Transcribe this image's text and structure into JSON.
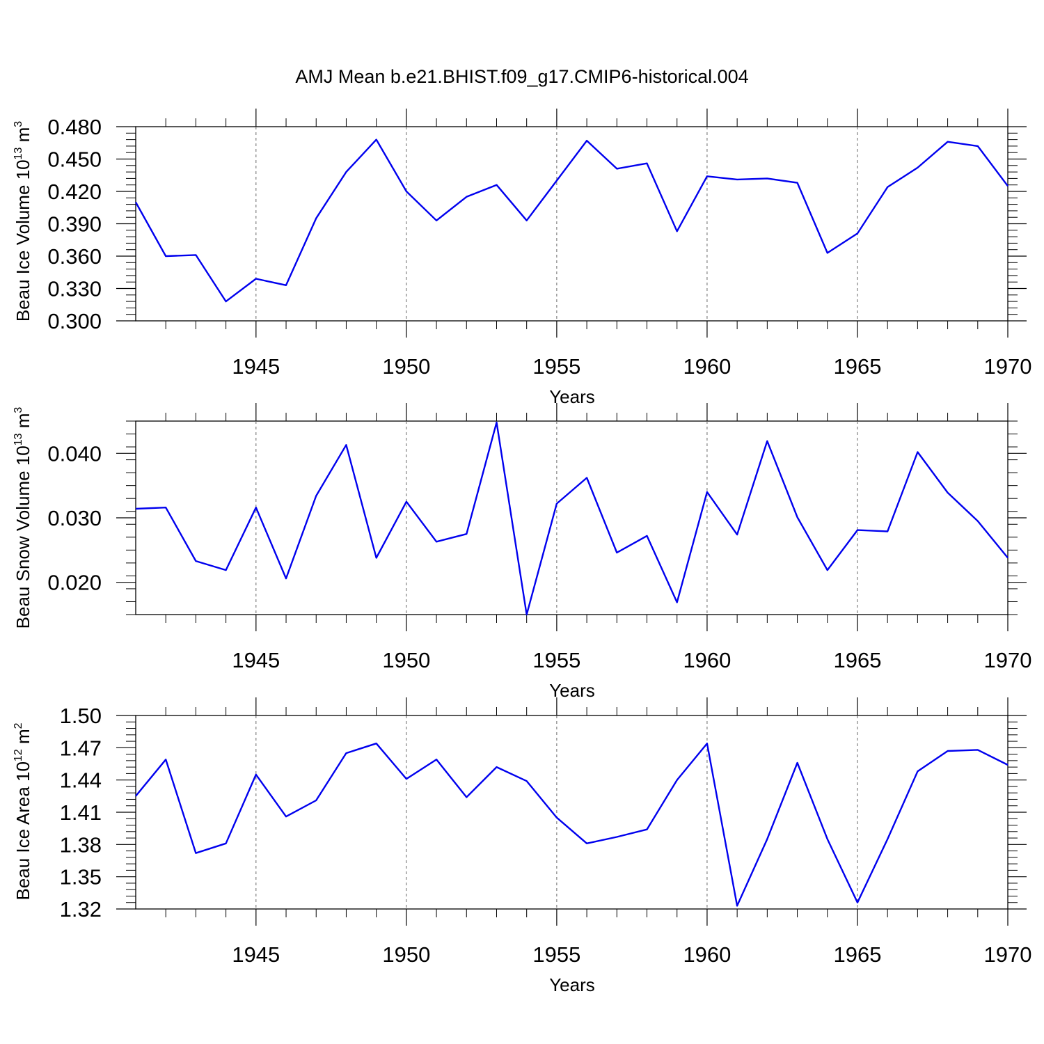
{
  "chart_data": {
    "type": "line",
    "title": "AMJ Mean b.e21.BHIST.f09_g17.CMIP6-historical.004",
    "line_color": "#0000ee",
    "x": [
      1941,
      1942,
      1943,
      1944,
      1945,
      1946,
      1947,
      1948,
      1949,
      1950,
      1951,
      1952,
      1953,
      1954,
      1955,
      1956,
      1957,
      1958,
      1959,
      1960,
      1961,
      1962,
      1963,
      1964,
      1965,
      1966,
      1967,
      1968,
      1969,
      1970
    ],
    "xlim": [
      1941,
      1970
    ],
    "xticks": [
      "1945",
      "1950",
      "1955",
      "1960",
      "1965",
      "1970"
    ],
    "xlabel": "Years",
    "panels": [
      {
        "ylabel": "Beau Ice Volume 10",
        "ylabel_exp": "13",
        "ylabel_unit": " m",
        "ylabel_unit_exp": "3",
        "ylim": [
          0.3,
          0.48
        ],
        "yticks": [
          "0.480",
          "0.450",
          "0.420",
          "0.390",
          "0.360",
          "0.330",
          "0.300"
        ],
        "values": [
          0.41,
          0.36,
          0.361,
          0.318,
          0.339,
          0.333,
          0.395,
          0.438,
          0.468,
          0.42,
          0.393,
          0.415,
          0.426,
          0.393,
          0.43,
          0.467,
          0.441,
          0.446,
          0.383,
          0.434,
          0.431,
          0.432,
          0.428,
          0.363,
          0.381,
          0.424,
          0.442,
          0.466,
          0.462,
          0.425
        ]
      },
      {
        "ylabel": "Beau Snow Volume 10",
        "ylabel_exp": "13",
        "ylabel_unit": " m",
        "ylabel_unit_exp": "3",
        "ylim": [
          0.015,
          0.045
        ],
        "yticks": [
          "0.040",
          "0.030",
          "0.020"
        ],
        "values": [
          0.0314,
          0.0316,
          0.0233,
          0.0219,
          0.0316,
          0.0206,
          0.0334,
          0.0413,
          0.0238,
          0.0325,
          0.0263,
          0.0275,
          0.0448,
          0.015,
          0.0322,
          0.0362,
          0.0246,
          0.0272,
          0.0169,
          0.034,
          0.0274,
          0.0419,
          0.0301,
          0.0219,
          0.0281,
          0.0279,
          0.0402,
          0.0339,
          0.0295,
          0.0238
        ]
      },
      {
        "ylabel": "Beau Ice Area 10",
        "ylabel_exp": "12",
        "ylabel_unit": " m",
        "ylabel_unit_exp": "2",
        "ylim": [
          1.32,
          1.5
        ],
        "yticks": [
          "1.50",
          "1.47",
          "1.44",
          "1.41",
          "1.38",
          "1.35",
          "1.32"
        ],
        "values": [
          1.425,
          1.459,
          1.372,
          1.381,
          1.445,
          1.406,
          1.421,
          1.465,
          1.474,
          1.441,
          1.459,
          1.424,
          1.452,
          1.439,
          1.405,
          1.381,
          1.387,
          1.394,
          1.44,
          1.474,
          1.323,
          1.385,
          1.456,
          1.385,
          1.326,
          1.385,
          1.448,
          1.467,
          1.468,
          1.454
        ]
      }
    ]
  }
}
